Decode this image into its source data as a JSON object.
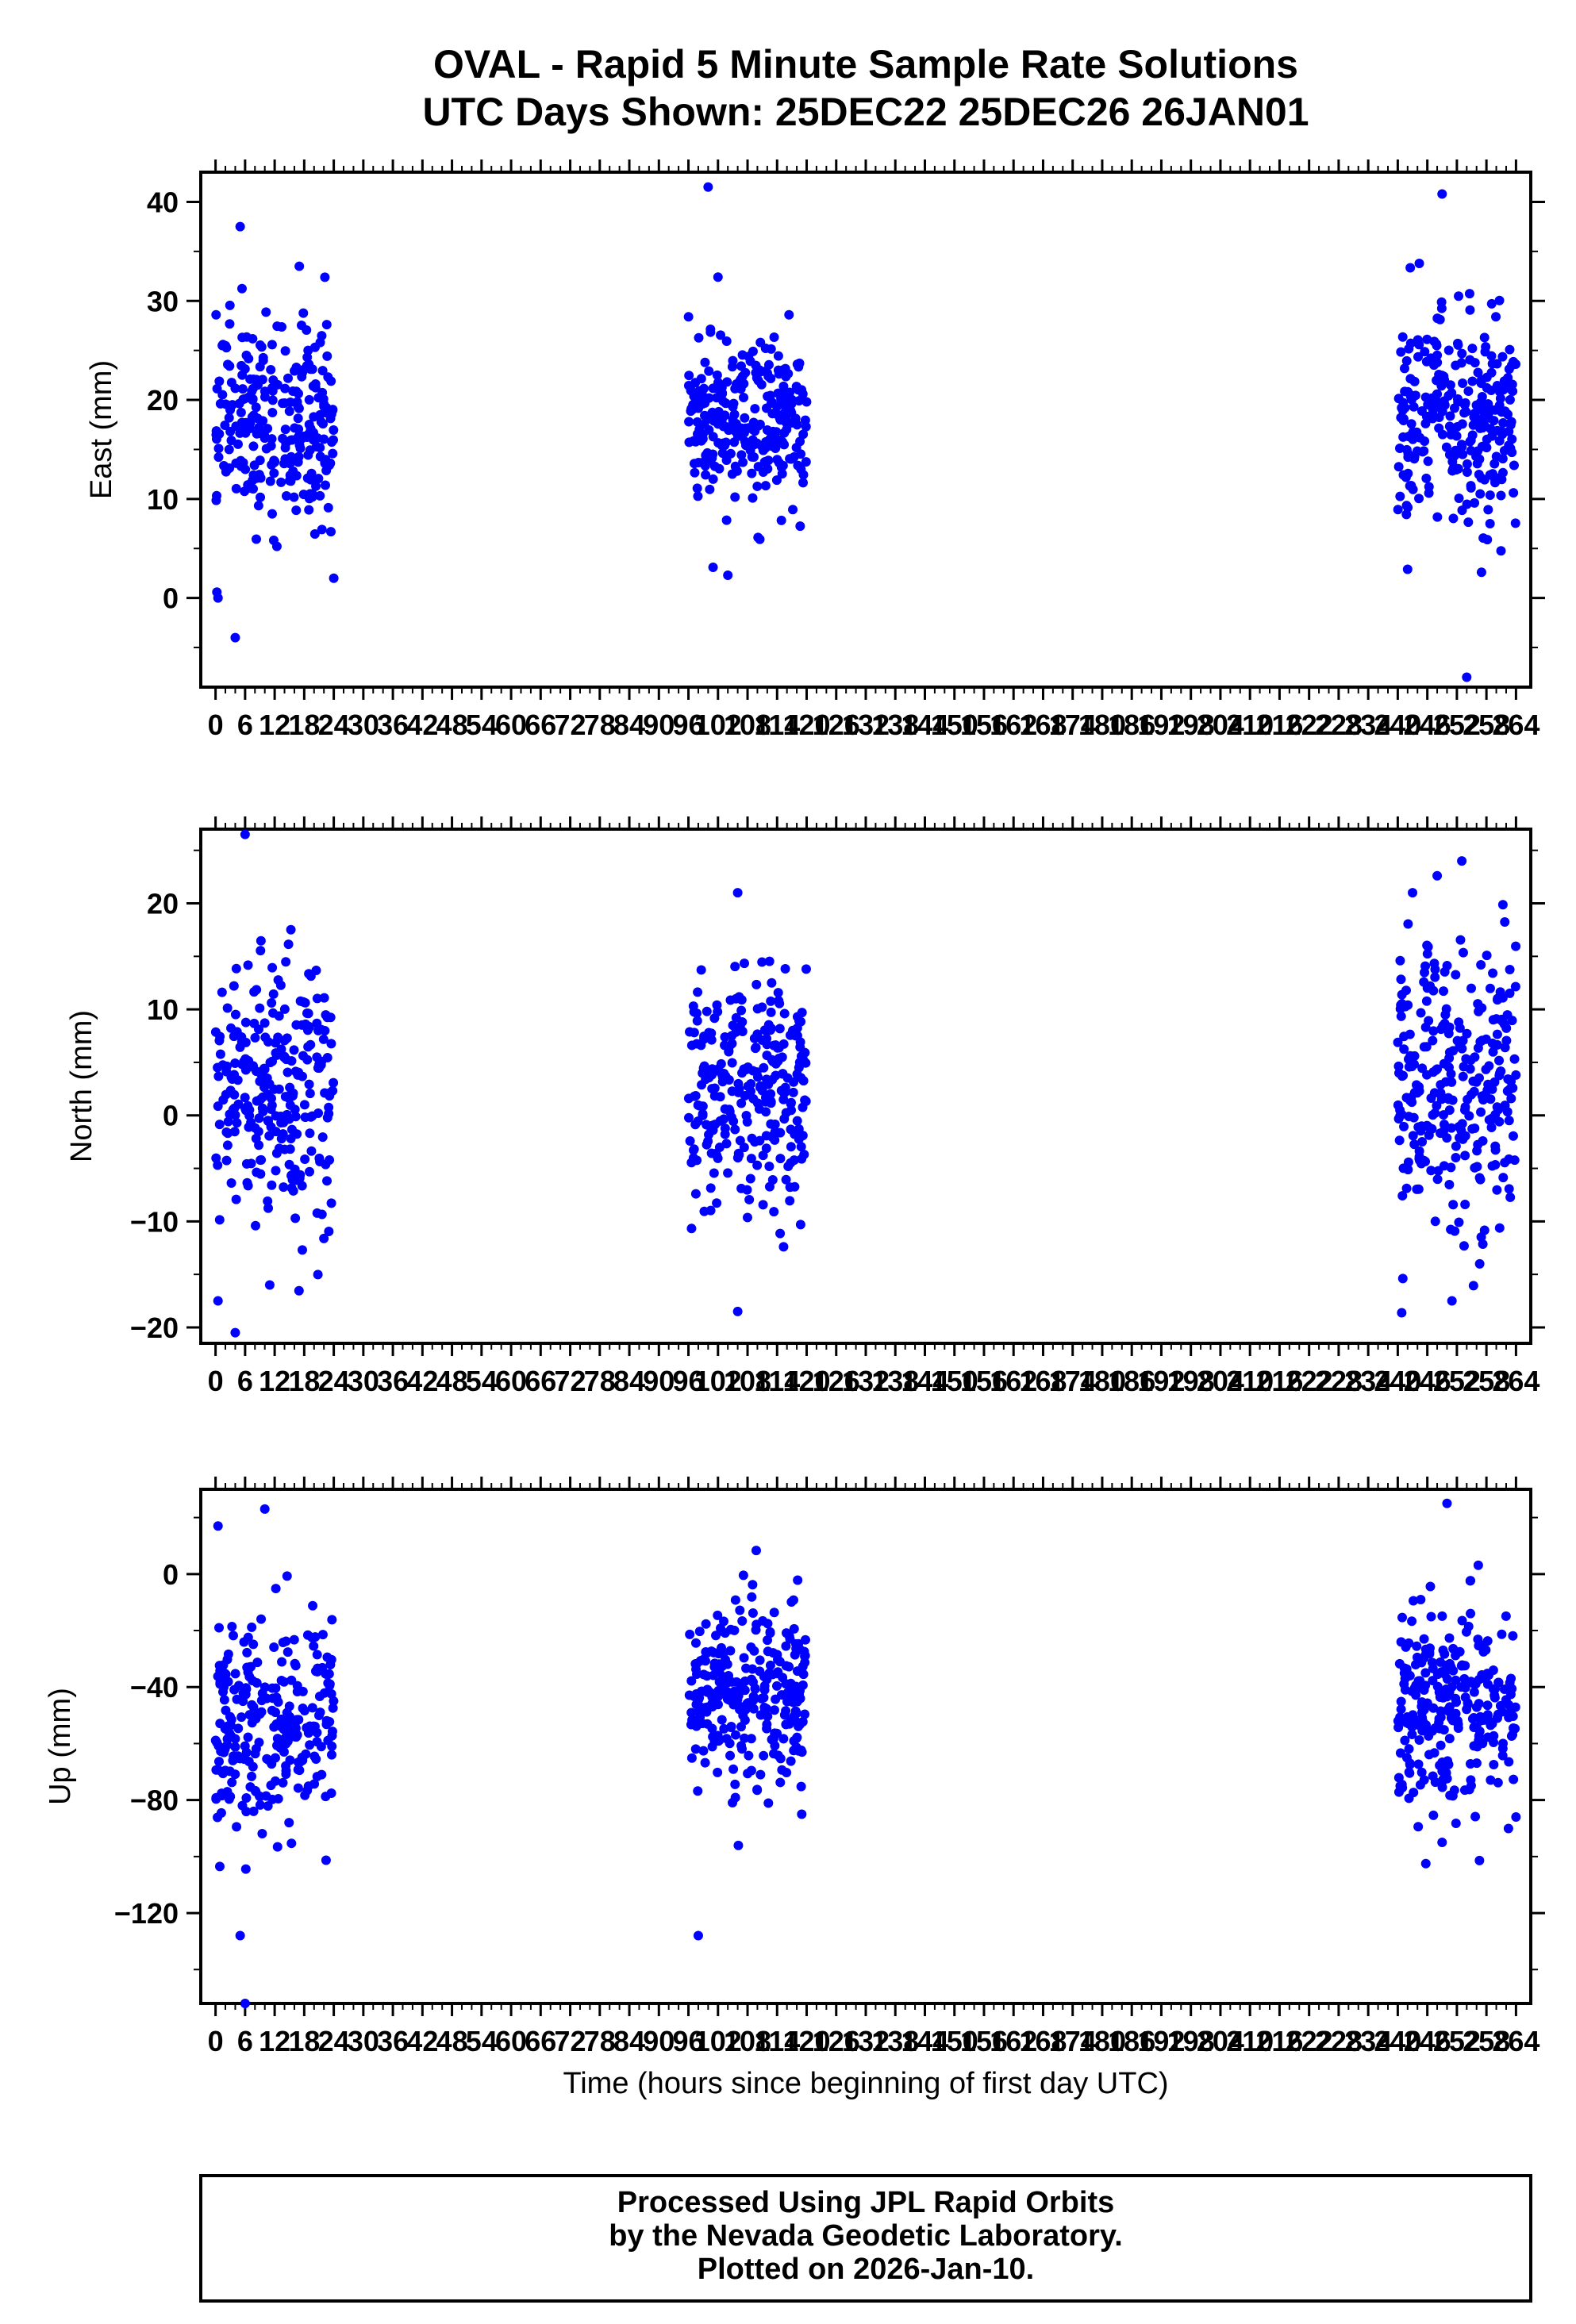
{
  "title": {
    "line1": "OVAL - Rapid 5 Minute Sample Rate Solutions",
    "line2": "UTC Days Shown:  25DEC22 25DEC26 26JAN01"
  },
  "xlabel": "Time (hours since beginning of first day UTC)",
  "footer": {
    "line1": "Processed Using JPL Rapid Orbits",
    "line2": "by the Nevada Geodetic Laboratory.",
    "line3": "Plotted on 2026-Jan-10."
  },
  "colors": {
    "points": "#0000ff",
    "frame": "#000000",
    "background": "#ffffff"
  },
  "chart_data": [
    {
      "type": "scatter",
      "ylabel": "East (mm)",
      "xlim": [
        -3,
        267
      ],
      "ylim": [
        -9,
        43
      ],
      "yticks": [
        0,
        10,
        20,
        30,
        40
      ],
      "xticks": [
        0,
        6,
        12,
        18,
        24,
        30,
        36,
        42,
        48,
        54,
        60,
        66,
        72,
        78,
        84,
        90,
        96,
        102,
        108,
        114,
        120,
        126,
        132,
        138,
        144,
        150,
        156,
        162,
        168,
        174,
        180,
        186,
        192,
        198,
        204,
        210,
        216,
        222,
        228,
        234,
        240,
        246,
        252,
        258,
        264
      ],
      "clusters": [
        {
          "x_range": [
            0,
            24
          ],
          "center": 18,
          "spread": 5,
          "n": 260
        },
        {
          "x_range": [
            96,
            120
          ],
          "center": 17.5,
          "spread": 4,
          "n": 280
        },
        {
          "x_range": [
            240,
            264
          ],
          "center": 18,
          "spread": 5,
          "n": 280
        }
      ],
      "outliers": [
        {
          "x": 0.5,
          "y": 0
        },
        {
          "x": 4,
          "y": -4
        },
        {
          "x": 5,
          "y": 37.5
        },
        {
          "x": 17,
          "y": 33.5
        },
        {
          "x": 24,
          "y": 2
        },
        {
          "x": 100,
          "y": 41.5
        },
        {
          "x": 104,
          "y": 2.3
        },
        {
          "x": 101,
          "y": 3.1
        },
        {
          "x": 102,
          "y": 32.4
        },
        {
          "x": 249,
          "y": 40.8
        },
        {
          "x": 254,
          "y": -8
        },
        {
          "x": 257,
          "y": 2.6
        },
        {
          "x": 242,
          "y": 2.9
        }
      ]
    },
    {
      "type": "scatter",
      "ylabel": "North (mm)",
      "xlim": [
        -3,
        267
      ],
      "ylim": [
        -21.5,
        27
      ],
      "yticks": [
        -20,
        -10,
        0,
        10,
        20
      ],
      "xticks": [
        0,
        6,
        12,
        18,
        24,
        30,
        36,
        42,
        48,
        54,
        60,
        66,
        72,
        78,
        84,
        90,
        96,
        102,
        108,
        114,
        120,
        126,
        132,
        138,
        144,
        150,
        156,
        162,
        168,
        174,
        180,
        186,
        192,
        198,
        204,
        210,
        216,
        222,
        228,
        234,
        240,
        246,
        252,
        258,
        264
      ],
      "clusters": [
        {
          "x_range": [
            0,
            24
          ],
          "center": 2,
          "spread": 6.5,
          "n": 260
        },
        {
          "x_range": [
            96,
            120
          ],
          "center": 2,
          "spread": 5.5,
          "n": 280
        },
        {
          "x_range": [
            240,
            264
          ],
          "center": 3,
          "spread": 6.5,
          "n": 280
        }
      ],
      "outliers": [
        {
          "x": 6,
          "y": 26.5
        },
        {
          "x": 4,
          "y": -20.5
        },
        {
          "x": 0.5,
          "y": -17.5
        },
        {
          "x": 11,
          "y": -16
        },
        {
          "x": 106,
          "y": 21
        },
        {
          "x": 106,
          "y": -18.5
        },
        {
          "x": 248,
          "y": 22.6
        },
        {
          "x": 253,
          "y": 24
        },
        {
          "x": 251,
          "y": -17.5
        },
        {
          "x": 243,
          "y": 21
        }
      ]
    },
    {
      "type": "scatter",
      "ylabel": "Up (mm)",
      "xlim": [
        -3,
        267
      ],
      "ylim": [
        -152,
        30
      ],
      "yticks": [
        -120,
        -80,
        -40,
        0
      ],
      "xticks": [
        0,
        6,
        12,
        18,
        24,
        30,
        36,
        42,
        48,
        54,
        60,
        66,
        72,
        78,
        84,
        90,
        96,
        102,
        108,
        114,
        120,
        126,
        132,
        138,
        144,
        150,
        156,
        162,
        168,
        174,
        180,
        186,
        192,
        198,
        204,
        210,
        216,
        222,
        228,
        234,
        240,
        246,
        252,
        258,
        264
      ],
      "clusters": [
        {
          "x_range": [
            0,
            24
          ],
          "center": -55,
          "spread": 20,
          "n": 260
        },
        {
          "x_range": [
            96,
            120
          ],
          "center": -45,
          "spread": 17,
          "n": 280
        },
        {
          "x_range": [
            240,
            264
          ],
          "center": -45,
          "spread": 17,
          "n": 280
        }
      ],
      "outliers": [
        {
          "x": 0.5,
          "y": 17
        },
        {
          "x": 10,
          "y": 23
        },
        {
          "x": 6,
          "y": -152
        },
        {
          "x": 5,
          "y": -128
        },
        {
          "x": 98,
          "y": -128
        },
        {
          "x": 250,
          "y": 25
        },
        {
          "x": 249,
          "y": -95
        },
        {
          "x": 264,
          "y": -86
        },
        {
          "x": 119,
          "y": -85
        }
      ]
    }
  ]
}
